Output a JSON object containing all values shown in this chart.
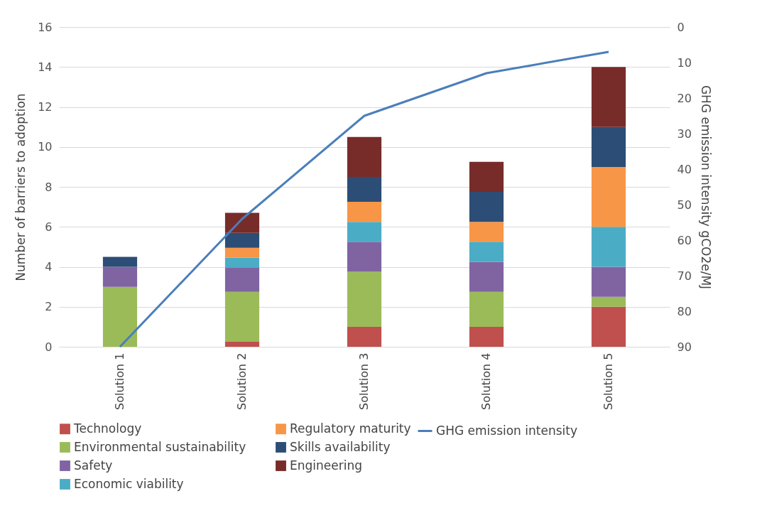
{
  "chart_data": {
    "type": "bar",
    "stacked": true,
    "ylabel": "Number of barriers to adoption",
    "y2label": "GHG emission intensity gCO2e/MJ",
    "categories": [
      "Solution 1",
      "Solution 2",
      "Solution 3",
      "Solution 4",
      "Solution 5"
    ],
    "ylim": [
      0,
      16
    ],
    "yticks": [
      0,
      2,
      4,
      6,
      8,
      10,
      12,
      14,
      16
    ],
    "y2lim": [
      90,
      0
    ],
    "y2ticks": [
      0,
      10,
      20,
      30,
      40,
      50,
      60,
      70,
      80,
      90
    ],
    "grid": "y",
    "legend": "bottom",
    "series": [
      {
        "name": "Technology",
        "color": "#c0504d",
        "values": [
          0,
          0.25,
          1,
          1,
          2
        ]
      },
      {
        "name": "Environmental sustainability",
        "color": "#9bbb59",
        "values": [
          3,
          2.5,
          2.75,
          1.75,
          0.5
        ]
      },
      {
        "name": "Safety",
        "color": "#8064a2",
        "values": [
          1,
          1.2,
          1.5,
          1.5,
          1.5
        ]
      },
      {
        "name": "Economic viability",
        "color": "#4bacc6",
        "values": [
          0,
          0.5,
          1,
          1,
          2
        ]
      },
      {
        "name": "Regulatory maturity",
        "color": "#f79646",
        "values": [
          0,
          0.5,
          1,
          1,
          3
        ]
      },
      {
        "name": "Skills availability",
        "color": "#2c4d75",
        "values": [
          0.5,
          0.75,
          1.25,
          1.5,
          2
        ]
      },
      {
        "name": "Engineering",
        "color": "#772c2a",
        "values": [
          0,
          1,
          2,
          1.5,
          3
        ]
      },
      {
        "name": "GHG emission intensity",
        "type": "line",
        "axis": "y2",
        "color": "#4a7ebb",
        "values": [
          90,
          54,
          25,
          13,
          7
        ]
      }
    ]
  }
}
